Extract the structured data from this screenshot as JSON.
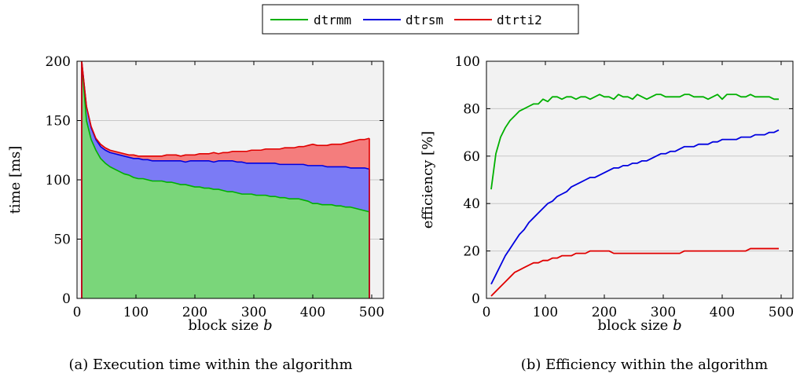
{
  "legend": {
    "items": [
      {
        "label": "dtrmm",
        "color": "#00b000"
      },
      {
        "label": "dtrsm",
        "color": "#0000e0"
      },
      {
        "label": "dtrti2",
        "color": "#e00000"
      }
    ]
  },
  "chart_data": [
    {
      "type": "area",
      "stacked": true,
      "title": "",
      "caption": "(a) Execution time within the algorithm",
      "xlabel": "block size",
      "xlabel_var": "b",
      "ylabel": "time",
      "ylabel_unit": "[ms]",
      "xlim": [
        0,
        520
      ],
      "ylim": [
        0,
        200
      ],
      "xticks": [
        0,
        100,
        200,
        300,
        400,
        500
      ],
      "yticks": [
        0,
        50,
        100,
        150,
        200
      ],
      "grid": "horizontal",
      "x": [
        8,
        16,
        24,
        32,
        40,
        48,
        56,
        64,
        72,
        80,
        88,
        96,
        104,
        112,
        120,
        128,
        136,
        144,
        152,
        160,
        168,
        176,
        184,
        192,
        200,
        208,
        216,
        224,
        232,
        240,
        248,
        256,
        264,
        272,
        280,
        288,
        296,
        304,
        312,
        320,
        328,
        336,
        344,
        352,
        360,
        368,
        376,
        384,
        392,
        400,
        408,
        416,
        424,
        432,
        440,
        448,
        456,
        464,
        472,
        480,
        488,
        496
      ],
      "series": [
        {
          "name": "dtrmm",
          "color": "#00b000",
          "fill": "#7ad67a",
          "values": [
            200,
            150,
            134,
            125,
            118,
            114,
            111,
            109,
            107,
            105,
            104,
            102,
            101,
            101,
            100,
            99,
            99,
            99,
            98,
            98,
            97,
            96,
            96,
            95,
            94,
            94,
            93,
            93,
            92,
            92,
            91,
            90,
            90,
            89,
            88,
            88,
            88,
            87,
            87,
            87,
            86,
            86,
            85,
            85,
            84,
            84,
            84,
            83,
            82,
            80,
            80,
            79,
            79,
            79,
            78,
            78,
            77,
            77,
            76,
            75,
            74,
            73
          ]
        },
        {
          "name": "dtrsm",
          "color": "#0000e0",
          "fill": "#7b7bf5",
          "values": [
            200,
            162,
            144,
            134,
            128,
            125,
            123,
            122,
            121,
            120,
            119,
            118,
            118,
            117,
            117,
            116,
            116,
            116,
            116,
            116,
            116,
            116,
            115,
            116,
            116,
            116,
            116,
            116,
            115,
            116,
            116,
            116,
            116,
            115,
            115,
            114,
            114,
            114,
            114,
            114,
            114,
            114,
            113,
            113,
            113,
            113,
            113,
            113,
            112,
            112,
            112,
            112,
            111,
            111,
            111,
            111,
            111,
            110,
            110,
            110,
            110,
            109
          ]
        },
        {
          "name": "dtrti2",
          "color": "#e00000",
          "fill": "#f47d7d",
          "values": [
            200,
            162,
            145,
            135,
            130,
            127,
            125,
            124,
            123,
            122,
            121,
            121,
            120,
            120,
            120,
            120,
            120,
            120,
            121,
            121,
            121,
            120,
            121,
            121,
            121,
            122,
            122,
            122,
            123,
            122,
            123,
            123,
            124,
            124,
            124,
            124,
            125,
            125,
            125,
            126,
            126,
            126,
            126,
            127,
            127,
            127,
            128,
            128,
            129,
            130,
            129,
            129,
            129,
            130,
            130,
            130,
            131,
            132,
            133,
            134,
            134,
            135
          ]
        }
      ]
    },
    {
      "type": "line",
      "title": "",
      "caption": "(b) Efficiency within the algorithm",
      "xlabel": "block size",
      "xlabel_var": "b",
      "ylabel": "efficiency",
      "ylabel_unit": "[%]",
      "xlim": [
        0,
        520
      ],
      "ylim": [
        0,
        100
      ],
      "xticks": [
        0,
        100,
        200,
        300,
        400,
        500
      ],
      "yticks": [
        0,
        20,
        40,
        60,
        80,
        100
      ],
      "grid": "horizontal",
      "x": [
        8,
        16,
        24,
        32,
        40,
        48,
        56,
        64,
        72,
        80,
        88,
        96,
        104,
        112,
        120,
        128,
        136,
        144,
        152,
        160,
        168,
        176,
        184,
        192,
        200,
        208,
        216,
        224,
        232,
        240,
        248,
        256,
        264,
        272,
        280,
        288,
        296,
        304,
        312,
        320,
        328,
        336,
        344,
        352,
        360,
        368,
        376,
        384,
        392,
        400,
        408,
        416,
        424,
        432,
        440,
        448,
        456,
        464,
        472,
        480,
        488,
        496
      ],
      "series": [
        {
          "name": "dtrmm",
          "color": "#00b000",
          "values": [
            46,
            61,
            68,
            72,
            75,
            77,
            79,
            80,
            81,
            82,
            82,
            84,
            83,
            85,
            85,
            84,
            85,
            85,
            84,
            85,
            85,
            84,
            85,
            86,
            85,
            85,
            84,
            86,
            85,
            85,
            84,
            86,
            85,
            84,
            85,
            86,
            86,
            85,
            85,
            85,
            85,
            86,
            86,
            85,
            85,
            85,
            84,
            85,
            86,
            84,
            86,
            86,
            86,
            85,
            85,
            86,
            85,
            85,
            85,
            85,
            84,
            84
          ]
        },
        {
          "name": "dtrsm",
          "color": "#0000e0",
          "values": [
            6,
            10,
            14,
            18,
            21,
            24,
            27,
            29,
            32,
            34,
            36,
            38,
            40,
            41,
            43,
            44,
            45,
            47,
            48,
            49,
            50,
            51,
            51,
            52,
            53,
            54,
            55,
            55,
            56,
            56,
            57,
            57,
            58,
            58,
            59,
            60,
            61,
            61,
            62,
            62,
            63,
            64,
            64,
            64,
            65,
            65,
            65,
            66,
            66,
            67,
            67,
            67,
            67,
            68,
            68,
            68,
            69,
            69,
            69,
            70,
            70,
            71
          ]
        },
        {
          "name": "dtrti2",
          "color": "#e00000",
          "values": [
            1,
            3,
            5,
            7,
            9,
            11,
            12,
            13,
            14,
            15,
            15,
            16,
            16,
            17,
            17,
            18,
            18,
            18,
            19,
            19,
            19,
            20,
            20,
            20,
            20,
            20,
            19,
            19,
            19,
            19,
            19,
            19,
            19,
            19,
            19,
            19,
            19,
            19,
            19,
            19,
            19,
            20,
            20,
            20,
            20,
            20,
            20,
            20,
            20,
            20,
            20,
            20,
            20,
            20,
            20,
            21,
            21,
            21,
            21,
            21,
            21,
            21
          ]
        }
      ]
    }
  ]
}
